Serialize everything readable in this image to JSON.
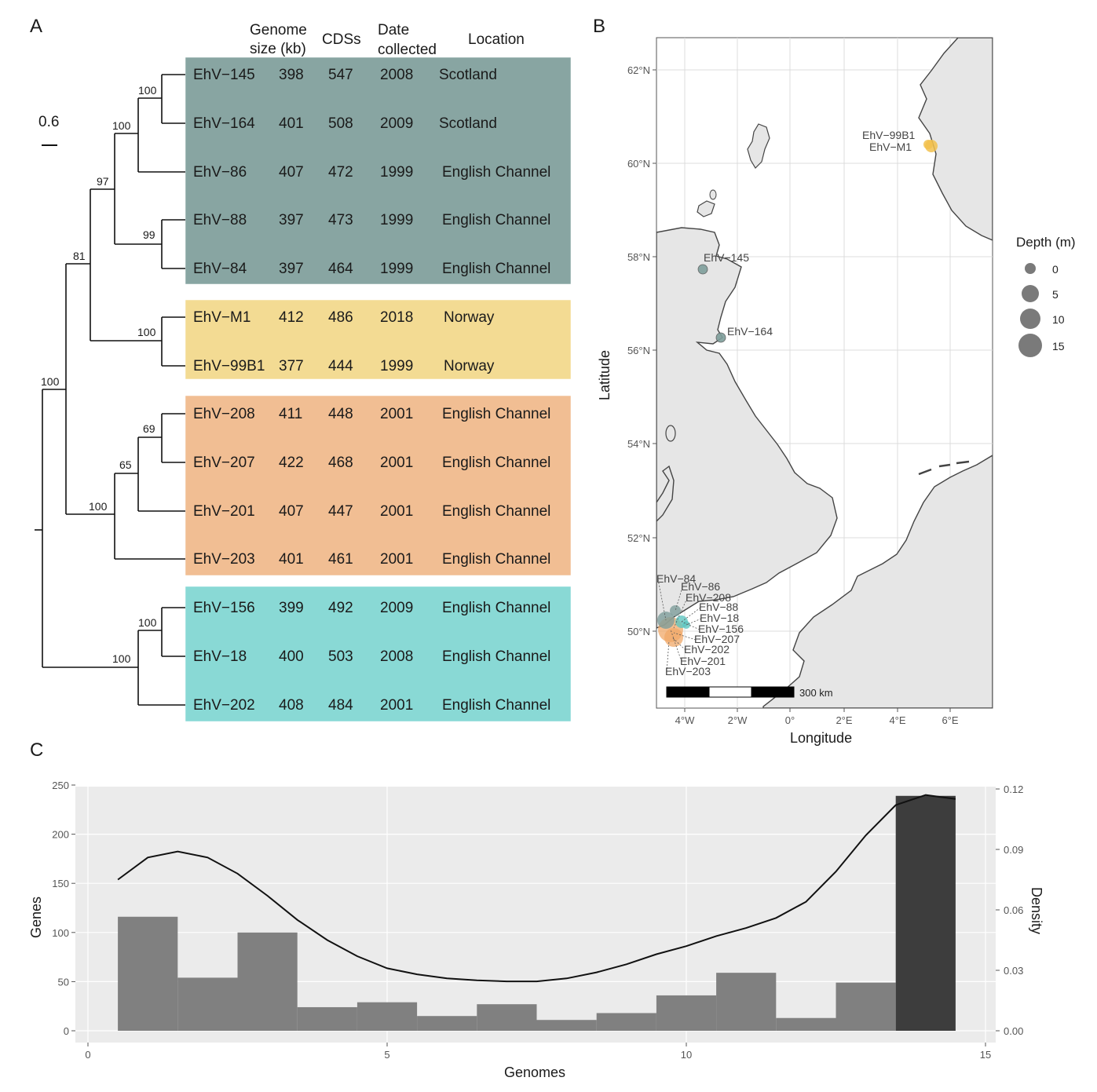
{
  "panels": {
    "a": "A",
    "b": "B",
    "c": "C"
  },
  "colors": {
    "scotland_group": "#7e9e9b",
    "norway_group": "#f2d98a",
    "channel_orange": "#f0b98a",
    "channel_cyan": "#7fd6d2",
    "land": "#e6e6e6",
    "coast": "#444444",
    "panel_bg": "#ebebeb",
    "bar_gray": "#808080",
    "bar_dark": "#3d3d3d"
  },
  "tree": {
    "scale_label": "0.6",
    "headers": {
      "genome_size": [
        "Genome",
        "size (kb)"
      ],
      "cdss": "CDSs",
      "date": [
        "Date",
        "collected"
      ],
      "location": "Location"
    },
    "bootstrap": [
      "100",
      "100",
      "97",
      "99",
      "81",
      "100",
      "100",
      "69",
      "65",
      "100",
      "100",
      "100"
    ],
    "rows": [
      {
        "name": "EhV−145",
        "size": "398",
        "cds": "547",
        "date": "2008",
        "location": "Scotland"
      },
      {
        "name": "EhV−164",
        "size": "401",
        "cds": "508",
        "date": "2009",
        "location": "Scotland"
      },
      {
        "name": "EhV−86",
        "size": "407",
        "cds": "472",
        "date": "1999",
        "location": "English Channel"
      },
      {
        "name": "EhV−88",
        "size": "397",
        "cds": "473",
        "date": "1999",
        "location": "English Channel"
      },
      {
        "name": "EhV−84",
        "size": "397",
        "cds": "464",
        "date": "1999",
        "location": "English Channel"
      },
      {
        "name": "EhV−M1",
        "size": "412",
        "cds": "486",
        "date": "2018",
        "location": "Norway"
      },
      {
        "name": "EhV−99B1",
        "size": "377",
        "cds": "444",
        "date": "1999",
        "location": "Norway"
      },
      {
        "name": "EhV−208",
        "size": "411",
        "cds": "448",
        "date": "2001",
        "location": "English Channel"
      },
      {
        "name": "EhV−207",
        "size": "422",
        "cds": "468",
        "date": "2001",
        "location": "English Channel"
      },
      {
        "name": "EhV−201",
        "size": "407",
        "cds": "447",
        "date": "2001",
        "location": "English Channel"
      },
      {
        "name": "EhV−203",
        "size": "401",
        "cds": "461",
        "date": "2001",
        "location": "English Channel"
      },
      {
        "name": "EhV−156",
        "size": "399",
        "cds": "492",
        "date": "2009",
        "location": "English Channel"
      },
      {
        "name": "EhV−18",
        "size": "400",
        "cds": "503",
        "date": "2008",
        "location": "English Channel"
      },
      {
        "name": "EhV−202",
        "size": "408",
        "cds": "484",
        "date": "2001",
        "location": "English Channel"
      }
    ]
  },
  "map": {
    "lat_ticks": [
      "62°N",
      "60°N",
      "58°N",
      "56°N",
      "54°N",
      "52°N",
      "50°N"
    ],
    "lon_ticks": [
      "4°W",
      "2°W",
      "0°",
      "2°E",
      "4°E",
      "6°E"
    ],
    "xlabel": "Longitude",
    "ylabel": "Latitude",
    "scale_bar": "300 km",
    "legend_title": "Depth (m)",
    "legend_values": [
      "0",
      "5",
      "10",
      "15"
    ],
    "site_labels": {
      "ehv145": "EhV−145",
      "ehv164": "EhV−164",
      "ehv99b1": "EhV−99B1",
      "ehvm1": "EhV−M1",
      "channel": [
        "EhV−84",
        "EhV−86",
        "EhV−208",
        "EhV−88",
        "EhV−18",
        "EhV−156",
        "EhV−207",
        "EhV−202",
        "EhV−201",
        "EhV−203"
      ]
    }
  },
  "chart_data": {
    "type": "bar",
    "title": "",
    "xlabel": "Genomes",
    "ylabel": "Genes",
    "y2label": "Density",
    "xlim": [
      0,
      15
    ],
    "ylim": [
      0,
      250
    ],
    "y2lim": [
      0,
      0.12
    ],
    "x_ticks": [
      "0",
      "5",
      "10",
      "15"
    ],
    "y_ticks": [
      "0",
      "50",
      "100",
      "150",
      "200",
      "250"
    ],
    "y2_ticks": [
      "0.00",
      "0.03",
      "0.06",
      "0.09",
      "0.12"
    ],
    "categories": [
      1,
      2,
      3,
      4,
      5,
      6,
      7,
      8,
      9,
      10,
      11,
      12,
      13,
      14
    ],
    "values": [
      116,
      54,
      100,
      24,
      29,
      15,
      27,
      11,
      18,
      36,
      59,
      13,
      49,
      239
    ],
    "density_curve": {
      "x": [
        0.5,
        1.0,
        1.5,
        2.0,
        2.5,
        3.0,
        3.5,
        4.0,
        4.5,
        5.0,
        5.5,
        6.0,
        6.5,
        7.0,
        7.5,
        8.0,
        8.5,
        9.0,
        9.5,
        10.0,
        10.5,
        11.0,
        11.5,
        12.0,
        12.5,
        13.0,
        13.5,
        14.0,
        14.5
      ],
      "y": [
        0.075,
        0.086,
        0.089,
        0.086,
        0.078,
        0.067,
        0.055,
        0.045,
        0.037,
        0.031,
        0.028,
        0.026,
        0.025,
        0.0245,
        0.0245,
        0.026,
        0.029,
        0.033,
        0.038,
        0.042,
        0.047,
        0.051,
        0.056,
        0.064,
        0.079,
        0.097,
        0.112,
        0.117,
        0.115
      ]
    }
  }
}
